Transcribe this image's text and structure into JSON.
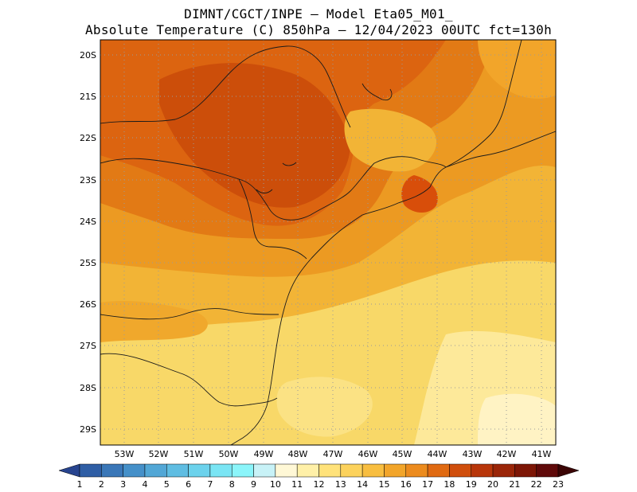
{
  "title_line1": "DIMNT/CGCT/INPE —  Model Eta05_M01_",
  "title_line2": "Absolute Temperature (C) 850hPa —  12/04/2023 00UTC fct=130h",
  "lat_labels": [
    "20S",
    "21S",
    "22S",
    "23S",
    "24S",
    "25S",
    "26S",
    "27S",
    "28S",
    "29S"
  ],
  "lon_labels": [
    "53W",
    "52W",
    "51W",
    "50W",
    "49W",
    "48W",
    "47W",
    "46W",
    "45W",
    "44W",
    "43W",
    "42W",
    "41W"
  ],
  "colorbar": {
    "labels": [
      "1",
      "2",
      "3",
      "4",
      "5",
      "6",
      "7",
      "8",
      "9",
      "10",
      "11",
      "12",
      "13",
      "14",
      "15",
      "16",
      "17",
      "18",
      "19",
      "20",
      "21",
      "22",
      "23"
    ],
    "colors": [
      "#27448f",
      "#2f5ea5",
      "#3a77b8",
      "#4590c9",
      "#52a7d6",
      "#5fbde2",
      "#6cd2ec",
      "#7ae5f4",
      "#8bf5fa",
      "#c8f2f7",
      "#fff8d6",
      "#fff0a8",
      "#ffe27a",
      "#fcd25c",
      "#f8be40",
      "#f2a52a",
      "#ec8b1e",
      "#e06a12",
      "#d04e0c",
      "#b8360a",
      "#9a2508",
      "#7d1606",
      "#600a0a",
      "#3b0505"
    ]
  }
}
